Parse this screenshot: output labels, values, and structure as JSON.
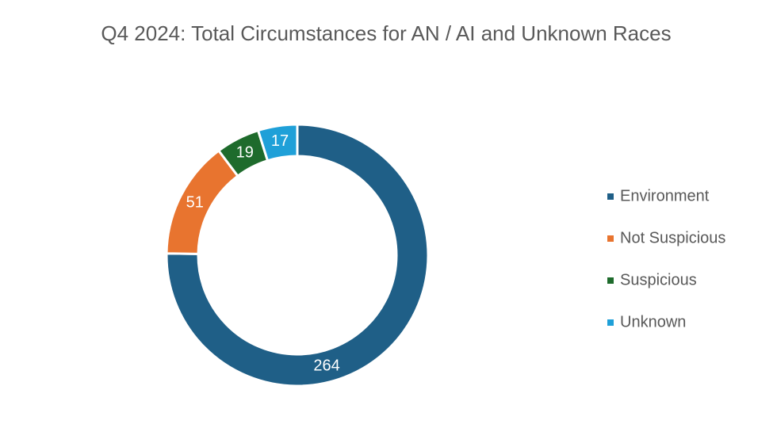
{
  "chart_data": {
    "type": "donut",
    "title": "Q4 2024: Total Circumstances for AN / AI and Unknown Races",
    "categories": [
      "Environment",
      "Not Suspicious",
      "Suspicious",
      "Unknown"
    ],
    "values": [
      264,
      51,
      19,
      17
    ],
    "colors": [
      "#1f5f87",
      "#e8742f",
      "#1e6b2c",
      "#1fa0d8"
    ],
    "legend": "right"
  }
}
